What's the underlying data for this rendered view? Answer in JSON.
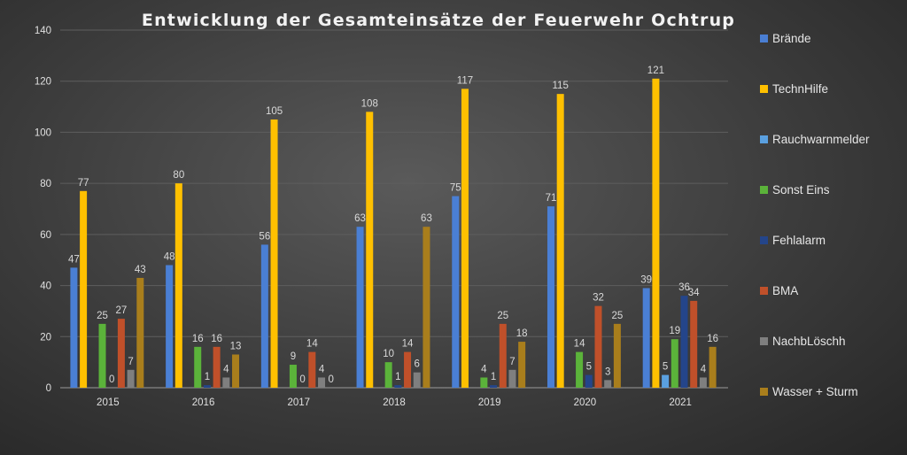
{
  "chart_data": {
    "type": "bar",
    "title": "Entwicklung der Gesamteinsätze der Feuerwehr Ochtrup",
    "xlabel": "",
    "ylabel": "",
    "categories": [
      "2015",
      "2016",
      "2017",
      "2018",
      "2019",
      "2020",
      "2021"
    ],
    "ylim": [
      0,
      140
    ],
    "yticks": [
      0,
      20,
      40,
      60,
      80,
      100,
      120,
      140
    ],
    "grid": true,
    "legend_position": "right",
    "series": [
      {
        "name": "Brände",
        "color": "#4a7fd4",
        "values": [
          47,
          48,
          56,
          63,
          75,
          71,
          39
        ]
      },
      {
        "name": "TechnHilfe",
        "color": "#ffc000",
        "values": [
          77,
          80,
          105,
          108,
          117,
          115,
          121
        ]
      },
      {
        "name": "Rauchwarnmelder",
        "color": "#5aa0e0",
        "values": [
          null,
          null,
          null,
          null,
          null,
          null,
          5
        ]
      },
      {
        "name": "Sonst Eins",
        "color": "#5bb33a",
        "values": [
          25,
          16,
          9,
          10,
          4,
          14,
          19
        ]
      },
      {
        "name": "Fehlalarm",
        "color": "#24458a",
        "values": [
          0,
          1,
          0,
          1,
          1,
          5,
          36
        ]
      },
      {
        "name": "BMA",
        "color": "#c0502a",
        "values": [
          27,
          16,
          14,
          14,
          25,
          32,
          34
        ]
      },
      {
        "name": "NachbLöschh",
        "color": "#7f7f7f",
        "values": [
          7,
          4,
          4,
          6,
          7,
          3,
          4
        ]
      },
      {
        "name": "Wasser + Sturm",
        "color": "#a97e1c",
        "values": [
          43,
          13,
          0,
          63,
          18,
          25,
          16
        ]
      }
    ]
  }
}
